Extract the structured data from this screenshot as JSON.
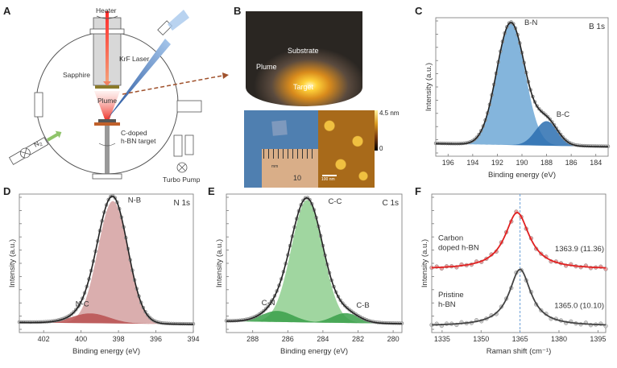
{
  "panels": {
    "A": {
      "letter": "A",
      "labels": {
        "heater": "Heater",
        "laser": "KrF Laser",
        "sapphire": "Sapphire",
        "plume": "Plume",
        "target_line1": "C-doped",
        "target_line2": "h-BN target",
        "n2": "N",
        "n2_sub": "2",
        "pump": "Turbo Pump"
      },
      "colors": {
        "heater_beam": "#e8312a",
        "laser_beam": "#3b6fb6",
        "sapphire": "#8a7a2a",
        "target_base": "#c0602a",
        "arrow": "#a0522d",
        "n2_arrow": "#8fc46a"
      }
    },
    "B": {
      "letter": "B",
      "labels": {
        "substrate": "Substrate",
        "plume": "Plume",
        "target": "Target",
        "ruler_unit": "mm",
        "ruler_number": "10",
        "scalebar": "100 nm",
        "colorbar_max": "4.5 nm",
        "colorbar_min": "0"
      }
    }
  },
  "chart_data": [
    {
      "id": "C",
      "type": "area",
      "title": "B 1s",
      "xlabel": "Binding energy (eV)",
      "ylabel": "Intensity (a.u.)",
      "xlim": [
        197,
        183
      ],
      "xticks": [
        196,
        194,
        192,
        190,
        188,
        186,
        184
      ],
      "grid": false,
      "baseline": 0.05,
      "series": [
        {
          "name": "B-N",
          "center": 190.9,
          "width": 1.15,
          "height": 1.0,
          "color": "#6fa8d6"
        },
        {
          "name": "B-C",
          "center": 188.0,
          "width": 0.9,
          "height": 0.2,
          "color": "#2c6fb0"
        }
      ],
      "annotations": [
        {
          "text": "B-N",
          "x": 189.8,
          "y": 1.02
        },
        {
          "text": "B-C",
          "x": 187.2,
          "y": 0.27
        }
      ]
    },
    {
      "id": "D",
      "type": "area",
      "title": "N 1s",
      "xlabel": "Binding energy (eV)",
      "ylabel": "Intensity (a.u.)",
      "xlim": [
        403.3,
        394
      ],
      "xticks": [
        402,
        400,
        398,
        396,
        394
      ],
      "grid": false,
      "baseline": 0.03,
      "series": [
        {
          "name": "N-B",
          "center": 398.3,
          "width": 0.8,
          "height": 1.0,
          "color": "#d4a0a0"
        },
        {
          "name": "N-C",
          "center": 399.5,
          "width": 1.0,
          "height": 0.08,
          "color": "#b85050"
        }
      ],
      "annotations": [
        {
          "text": "N-B",
          "x": 397.5,
          "y": 1.01
        },
        {
          "text": "N-C",
          "x": 400.3,
          "y": 0.16
        }
      ]
    },
    {
      "id": "E",
      "type": "area",
      "title": "C 1s",
      "xlabel": "Binding energy (eV)",
      "ylabel": "Intensity (a.u.)",
      "xlim": [
        289.5,
        279.5
      ],
      "xticks": [
        288,
        286,
        284,
        282,
        280
      ],
      "grid": false,
      "baseline": 0.04,
      "series": [
        {
          "name": "C-C",
          "center": 284.9,
          "width": 0.9,
          "height": 1.0,
          "color": "#8fcf8f"
        },
        {
          "name": "C-N",
          "center": 286.6,
          "width": 0.9,
          "height": 0.09,
          "color": "#3aa04a"
        },
        {
          "name": "C-B",
          "center": 282.7,
          "width": 0.75,
          "height": 0.08,
          "color": "#3aa04a"
        }
      ],
      "annotations": [
        {
          "text": "C-C",
          "x": 283.7,
          "y": 1.0
        },
        {
          "text": "C-N",
          "x": 287.5,
          "y": 0.17
        },
        {
          "text": "C-B",
          "x": 282.1,
          "y": 0.15
        }
      ]
    },
    {
      "id": "F",
      "type": "line",
      "xlabel": "Raman shift (cm⁻¹)",
      "ylabel": "Intensity (a.u.)",
      "xlim": [
        1331,
        1398
      ],
      "xticks": [
        1335,
        1350,
        1365,
        1380,
        1395
      ],
      "grid": false,
      "reference_line_x": 1365,
      "series": [
        {
          "name": "Carbon doped h-BN",
          "label_line1": "Carbon",
          "label_line2": "doped h-BN",
          "peak": 1363.9,
          "fwhm": 11.36,
          "offset": 0.47,
          "height": 0.47,
          "color": "#e02020",
          "annotation": "1363.9 (11.36)"
        },
        {
          "name": "Pristine h-BN",
          "label_line1": "Pristine",
          "label_line2": "h-BN",
          "peak": 1365.0,
          "fwhm": 10.1,
          "offset": 0.0,
          "height": 0.47,
          "color": "#444444",
          "annotation": "1365.0 (10.10)"
        }
      ]
    }
  ]
}
